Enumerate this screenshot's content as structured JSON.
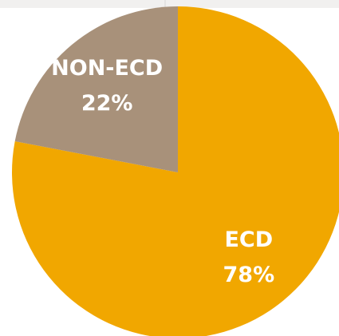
{
  "chart_data": {
    "type": "pie",
    "categories": [
      "ECD",
      "NON-ECD"
    ],
    "values": [
      78,
      22
    ],
    "value_labels": [
      "78%",
      "22%"
    ],
    "colors": [
      "#f1a700",
      "#a8917a"
    ]
  }
}
